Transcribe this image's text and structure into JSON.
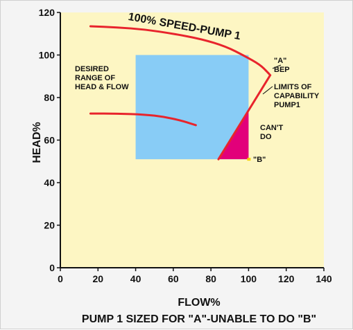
{
  "chart_data": {
    "type": "line",
    "title": "PUMP 1 SIZED FOR \"A\"-UNABLE TO DO \"B\"",
    "xlabel": "FLOW%",
    "ylabel": "HEAD%",
    "xlim": [
      0,
      140
    ],
    "ylim": [
      0,
      120
    ],
    "x_ticks": [
      "0",
      "20",
      "40",
      "60",
      "80",
      "100",
      "120",
      "140"
    ],
    "y_ticks": [
      "0",
      "20",
      "40",
      "60",
      "80",
      "100",
      "120"
    ],
    "grid": false,
    "plot_background": "#fdf6c3",
    "series": [
      {
        "name": "100% SPEED-PUMP 1",
        "color": "#e8242c",
        "points": [
          [
            16,
            113.5
          ],
          [
            30,
            113
          ],
          [
            45,
            112
          ],
          [
            60,
            110
          ],
          [
            75,
            107.5
          ],
          [
            88,
            104
          ],
          [
            98,
            99.5
          ],
          [
            106,
            95.5
          ],
          [
            110,
            92
          ],
          [
            111.5,
            90.5
          ]
        ]
      },
      {
        "name": "",
        "color": "#e8242c",
        "points": [
          [
            16,
            72.5
          ],
          [
            30,
            72.5
          ],
          [
            45,
            72
          ],
          [
            55,
            71
          ],
          [
            65,
            69
          ],
          [
            72,
            67
          ]
        ]
      },
      {
        "name": "",
        "color": "#e8242c",
        "points": [
          [
            111.5,
            90.5
          ],
          [
            84,
            51
          ]
        ]
      }
    ],
    "regions": [
      {
        "name": "DESIRED RANGE OF HEAD & FLOW",
        "color": "#88ccf6",
        "x": [
          40,
          100
        ],
        "y": [
          51,
          100
        ]
      },
      {
        "name": "CAN'T DO",
        "color": "#e2007a",
        "polygon": [
          [
            84,
            51
          ],
          [
            100,
            51
          ],
          [
            100,
            74
          ]
        ]
      }
    ],
    "points": [
      {
        "name": "\"B\"",
        "color": "#f7d300",
        "x": 100,
        "y": 51
      }
    ],
    "annotations": {
      "curve_label": "100% SPEED-PUMP 1",
      "desired_label": [
        "DESIRED",
        "RANGE OF",
        "HEAD & FLOW"
      ],
      "a_label": [
        "\"A\"",
        "BEP"
      ],
      "limits_label": [
        "LIMITS OF",
        "CAPABILITY",
        "PUMP1"
      ],
      "cant_label": [
        "CAN'T",
        "DO"
      ],
      "b_label": "\"B\""
    }
  }
}
